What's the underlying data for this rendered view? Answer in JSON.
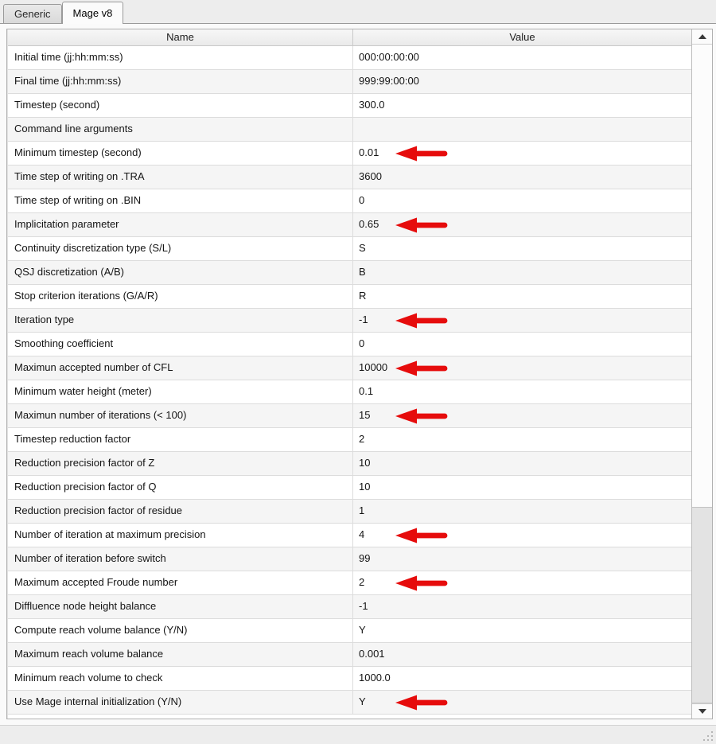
{
  "tabs": [
    {
      "label": "Generic",
      "active": false
    },
    {
      "label": "Mage v8",
      "active": true
    }
  ],
  "table": {
    "columns": [
      "Name",
      "Value"
    ],
    "rows": [
      {
        "name": "Initial time (jj:hh:mm:ss)",
        "value": "000:00:00:00",
        "arrow": false
      },
      {
        "name": "Final time (jj:hh:mm:ss)",
        "value": "999:99:00:00",
        "arrow": false
      },
      {
        "name": "Timestep (second)",
        "value": "300.0",
        "arrow": false
      },
      {
        "name": "Command line arguments",
        "value": "",
        "arrow": false
      },
      {
        "name": "Minimum timestep (second)",
        "value": "0.01",
        "arrow": true
      },
      {
        "name": "Time step of writing on .TRA",
        "value": "3600",
        "arrow": false
      },
      {
        "name": "Time step of writing on .BIN",
        "value": "0",
        "arrow": false
      },
      {
        "name": "Implicitation parameter",
        "value": "0.65",
        "arrow": true
      },
      {
        "name": "Continuity discretization type (S/L)",
        "value": "S",
        "arrow": false
      },
      {
        "name": "QSJ discretization (A/B)",
        "value": "B",
        "arrow": false
      },
      {
        "name": "Stop criterion iterations (G/A/R)",
        "value": "R",
        "arrow": false
      },
      {
        "name": "Iteration type",
        "value": "-1",
        "arrow": true
      },
      {
        "name": "Smoothing coefficient",
        "value": "0",
        "arrow": false
      },
      {
        "name": "Maximun accepted number of CFL",
        "value": "10000",
        "arrow": true
      },
      {
        "name": "Minimum water height (meter)",
        "value": "0.1",
        "arrow": false
      },
      {
        "name": "Maximun number of iterations (< 100)",
        "value": "15",
        "arrow": true
      },
      {
        "name": "Timestep reduction factor",
        "value": "2",
        "arrow": false
      },
      {
        "name": "Reduction precision factor of Z",
        "value": "10",
        "arrow": false
      },
      {
        "name": "Reduction precision factor of Q",
        "value": "10",
        "arrow": false
      },
      {
        "name": "Reduction precision factor of residue",
        "value": "1",
        "arrow": false
      },
      {
        "name": "Number of iteration at maximum precision",
        "value": "4",
        "arrow": true
      },
      {
        "name": "Number of iteration before switch",
        "value": "99",
        "arrow": false
      },
      {
        "name": "Maximum accepted Froude number",
        "value": "2",
        "arrow": true
      },
      {
        "name": "Diffluence node height balance",
        "value": "-1",
        "arrow": false
      },
      {
        "name": "Compute reach volume balance (Y/N)",
        "value": "Y",
        "arrow": false
      },
      {
        "name": "Maximum reach volume balance",
        "value": "0.001",
        "arrow": false
      },
      {
        "name": "Minimum reach volume to check",
        "value": "1000.0",
        "arrow": false
      },
      {
        "name": "Use Mage internal initialization (Y/N)",
        "value": "Y",
        "arrow": true
      }
    ]
  },
  "colors": {
    "arrow_red": "#e60c0c"
  }
}
